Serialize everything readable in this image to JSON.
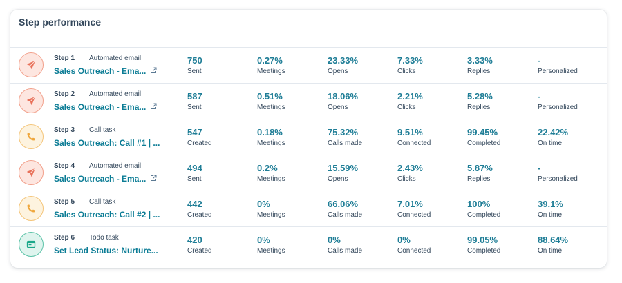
{
  "title": "Step performance",
  "rows": [
    {
      "icon": "send-icon",
      "step": "Step 1",
      "type": "Automated email",
      "name": "Sales Outreach - Ema...",
      "external": true,
      "metrics": [
        {
          "value": "750",
          "label": "Sent"
        },
        {
          "value": "0.27%",
          "label": "Meetings"
        },
        {
          "value": "23.33%",
          "label": "Opens"
        },
        {
          "value": "7.33%",
          "label": "Clicks"
        },
        {
          "value": "3.33%",
          "label": "Replies"
        },
        {
          "value": "-",
          "label": "Personalized"
        }
      ]
    },
    {
      "icon": "send-icon",
      "step": "Step 2",
      "type": "Automated email",
      "name": "Sales Outreach - Ema...",
      "external": true,
      "metrics": [
        {
          "value": "587",
          "label": "Sent"
        },
        {
          "value": "0.51%",
          "label": "Meetings"
        },
        {
          "value": "18.06%",
          "label": "Opens"
        },
        {
          "value": "2.21%",
          "label": "Clicks"
        },
        {
          "value": "5.28%",
          "label": "Replies"
        },
        {
          "value": "-",
          "label": "Personalized"
        }
      ]
    },
    {
      "icon": "phone-icon",
      "step": "Step 3",
      "type": "Call task",
      "name": "Sales Outreach: Call #1 | ...",
      "external": false,
      "metrics": [
        {
          "value": "547",
          "label": "Created"
        },
        {
          "value": "0.18%",
          "label": "Meetings"
        },
        {
          "value": "75.32%",
          "label": "Calls made"
        },
        {
          "value": "9.51%",
          "label": "Connected"
        },
        {
          "value": "99.45%",
          "label": "Completed"
        },
        {
          "value": "22.42%",
          "label": "On time"
        }
      ]
    },
    {
      "icon": "send-icon",
      "step": "Step 4",
      "type": "Automated email",
      "name": "Sales Outreach - Ema...",
      "external": true,
      "metrics": [
        {
          "value": "494",
          "label": "Sent"
        },
        {
          "value": "0.2%",
          "label": "Meetings"
        },
        {
          "value": "15.59%",
          "label": "Opens"
        },
        {
          "value": "2.43%",
          "label": "Clicks"
        },
        {
          "value": "5.87%",
          "label": "Replies"
        },
        {
          "value": "-",
          "label": "Personalized"
        }
      ]
    },
    {
      "icon": "phone-icon",
      "step": "Step 5",
      "type": "Call task",
      "name": "Sales Outreach: Call #2 | ...",
      "external": false,
      "metrics": [
        {
          "value": "442",
          "label": "Created"
        },
        {
          "value": "0%",
          "label": "Meetings"
        },
        {
          "value": "66.06%",
          "label": "Calls made"
        },
        {
          "value": "7.01%",
          "label": "Connected"
        },
        {
          "value": "100%",
          "label": "Completed"
        },
        {
          "value": "39.1%",
          "label": "On time"
        }
      ]
    },
    {
      "icon": "todo-icon",
      "step": "Step 6",
      "type": "Todo task",
      "name": "Set Lead Status: Nurture...",
      "external": false,
      "metrics": [
        {
          "value": "420",
          "label": "Created"
        },
        {
          "value": "0%",
          "label": "Meetings"
        },
        {
          "value": "0%",
          "label": "Calls made"
        },
        {
          "value": "0%",
          "label": "Connected"
        },
        {
          "value": "99.05%",
          "label": "Completed"
        },
        {
          "value": "88.64%",
          "label": "On time"
        }
      ]
    }
  ]
}
